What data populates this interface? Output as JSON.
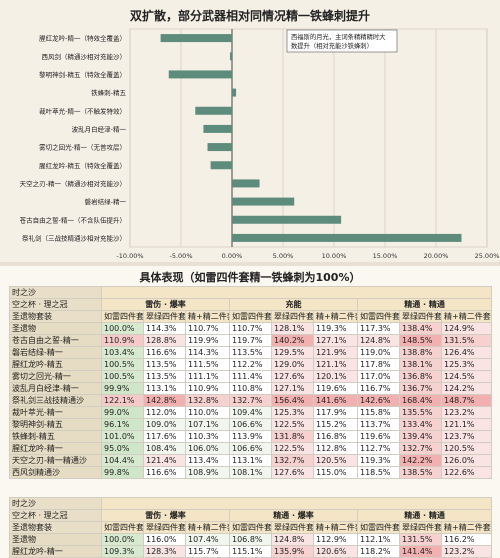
{
  "chart_data": {
    "type": "bar",
    "title": "双扩散，部分武器相对同情况精一铁蜂刺提升",
    "categories": [
      "腥红龙吟-精一（特效全覆盖）",
      "西风剑（精通沙相对充能沙）",
      "黎明神剑-精五（特效全覆盖）",
      "铁蜂刺-精五",
      "裁叶萃光-精一（不触发特效）",
      "波乱月白经津-精一",
      "雾切之回光-精一（无普攻层）",
      "腥红龙吟-精五（特效全覆盖）",
      "天空之刃-精一（精通沙相对充能沙）",
      "磐岩结绿-精一",
      "苍古自由之誓-精一（不含队伍提升）",
      "祭礼剑（三战技精通沙相对充能沙）"
    ],
    "values": [
      -7.0,
      -0.2,
      -6.2,
      0.4,
      -3.6,
      -2.8,
      -2.4,
      -2.1,
      2.7,
      6.1,
      10.7,
      22.5
    ],
    "xlim": [
      -10,
      25
    ],
    "xticks": [
      "-10.00%",
      "-5.00%",
      "0.00%",
      "5.00%",
      "10.00%",
      "15.00%",
      "20.00%",
      "25.00%"
    ],
    "annotation": "西福斯的月光，主词条精精精时大数提升（相对充能沙铁蜂刺）",
    "bar_color": "#5e8c7c",
    "grid": true
  },
  "table1": {
    "title": "具体表现（如雷四件套精一铁蜂刺为100%）",
    "caption": "时之沙",
    "row_head": "空之杯 · 理之冠",
    "set_label": "圣遗物套装",
    "groups": [
      "雷伤 · 爆率",
      "充能",
      "精通 · 精通"
    ],
    "sub_heads": [
      "如雷四件套",
      "翠绿四件套",
      "精+精二件套",
      "如雷四件套",
      "翠绿四件套",
      "精+精二件套",
      "如雷四件套",
      "翠绿四件套",
      "精+精二件套"
    ],
    "rows": [
      {
        "name": "圣遗物",
        "vals": [
          "100.0%",
          "114.3%",
          "110.7%",
          "110.7%",
          "128.1%",
          "119.3%",
          "117.3%",
          "138.4%",
          "124.9%"
        ]
      },
      {
        "name": "苍古自由之誓-精一",
        "vals": [
          "110.9%",
          "128.8%",
          "119.9%",
          "119.7%",
          "140.2%",
          "127.1%",
          "124.8%",
          "148.5%",
          "131.5%"
        ]
      },
      {
        "name": "磐岩结绿-精一",
        "vals": [
          "103.4%",
          "116.6%",
          "114.3%",
          "113.5%",
          "129.5%",
          "121.9%",
          "119.0%",
          "138.8%",
          "126.4%"
        ]
      },
      {
        "name": "腥红龙吟-精五",
        "vals": [
          "100.5%",
          "113.5%",
          "111.5%",
          "112.2%",
          "129.0%",
          "121.1%",
          "117.8%",
          "138.1%",
          "125.3%"
        ]
      },
      {
        "name": "雾切之回光-精一",
        "vals": [
          "100.5%",
          "113.5%",
          "111.1%",
          "111.4%",
          "127.6%",
          "120.1%",
          "117.0%",
          "136.8%",
          "124.5%"
        ]
      },
      {
        "name": "波乱月白经津-精一",
        "vals": [
          "99.9%",
          "113.1%",
          "110.9%",
          "110.8%",
          "127.1%",
          "119.6%",
          "116.7%",
          "136.7%",
          "124.2%"
        ]
      },
      {
        "name": "祭礼剑三战技精通沙",
        "vals": [
          "122.1%",
          "142.8%",
          "132.8%",
          "132.7%",
          "156.4%",
          "141.6%",
          "142.6%",
          "168.4%",
          "148.7%"
        ]
      },
      {
        "name": "裁叶萃光-精一",
        "vals": [
          "99.0%",
          "112.0%",
          "110.0%",
          "109.4%",
          "125.3%",
          "117.9%",
          "115.8%",
          "135.5%",
          "123.2%"
        ]
      },
      {
        "name": "黎明神剑-精五",
        "vals": [
          "96.1%",
          "109.0%",
          "107.1%",
          "106.6%",
          "122.5%",
          "115.2%",
          "113.7%",
          "133.4%",
          "121.1%"
        ]
      },
      {
        "name": "铁蜂刺-精五",
        "vals": [
          "101.0%",
          "117.6%",
          "110.3%",
          "113.9%",
          "131.8%",
          "116.8%",
          "119.6%",
          "139.4%",
          "123.7%"
        ]
      },
      {
        "name": "腥红龙吟-精一",
        "vals": [
          "95.0%",
          "108.4%",
          "106.0%",
          "106.6%",
          "122.5%",
          "112.8%",
          "112.7%",
          "132.7%",
          "120.5%"
        ]
      },
      {
        "name": "天空之刃-精一精通沙",
        "vals": [
          "104.4%",
          "121.4%",
          "113.4%",
          "113.1%",
          "132.7%",
          "120.5%",
          "119.3%",
          "142.2%",
          "126.0%"
        ]
      },
      {
        "name": "西风剑精通沙",
        "vals": [
          "99.8%",
          "116.6%",
          "108.9%",
          "108.1%",
          "127.6%",
          "115.0%",
          "118.5%",
          "138.5%",
          "122.6%"
        ]
      }
    ]
  },
  "table2": {
    "caption": "时之沙",
    "row_head": "空之杯 · 理之冠",
    "set_label": "圣遗物套装",
    "groups": [
      "雷伤 · 爆率",
      "精通 · 爆率",
      "精通 · 精通"
    ],
    "sub_heads": [
      "如雷四件套",
      "翠绿四件套",
      "精+精二件套",
      "如雷四件套",
      "翠绿四件套",
      "精+精二件套",
      "如雷四件套",
      "翠绿四件套",
      "精+精二件套"
    ],
    "rows": [
      {
        "name": "圣遗物",
        "vals": [
          "100.0%",
          "116.0%",
          "107.4%",
          "106.8%",
          "124.8%",
          "112.9%",
          "112.1%",
          "131.5%",
          "116.2%"
        ]
      },
      {
        "name": "腥红龙吟-精一",
        "vals": [
          "109.3%",
          "128.3%",
          "115.7%",
          "115.1%",
          "135.9%",
          "120.6%",
          "118.2%",
          "141.4%",
          "123.2%"
        ]
      }
    ]
  }
}
